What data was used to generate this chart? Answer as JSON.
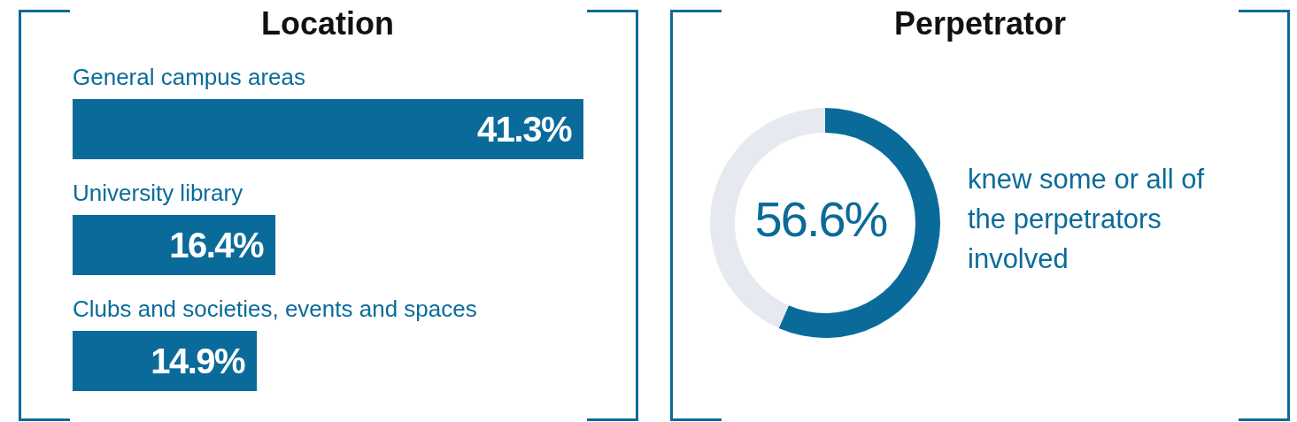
{
  "chart_data": [
    {
      "type": "bar",
      "title": "Location",
      "orientation": "horizontal",
      "categories": [
        "General campus areas",
        "University library",
        "Clubs and societies, events and spaces"
      ],
      "values": [
        41.3,
        16.4,
        14.9
      ],
      "color": "#0a6b9a",
      "value_labels": [
        "41.3%",
        "16.4%",
        "14.9%"
      ]
    },
    {
      "type": "donut",
      "title": "Perpetrator",
      "categories": [
        null,
        null
      ],
      "values": [
        56.6,
        43.4
      ],
      "colors": [
        "#0a6b9a",
        "#e6e9f0"
      ],
      "annotations": [
        "56.6%",
        "knew some or all of the perpetrators involved"
      ]
    }
  ]
}
